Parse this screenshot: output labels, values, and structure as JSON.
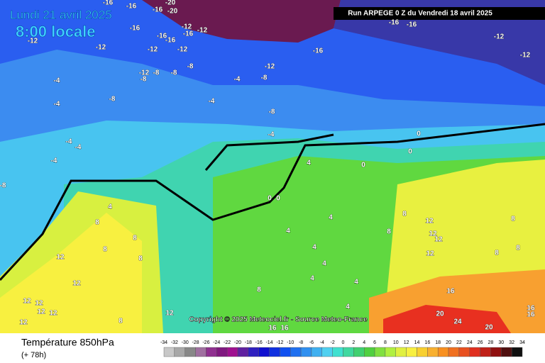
{
  "header": {
    "date": "Lundi 21 avril 2025",
    "time": "8:00 locale",
    "run": "Run ARPEGE 0 Z du Vendredi 18 avril 2025"
  },
  "copyright": "Copyright © 2025 Meteociel.fr - Source Meteo-France",
  "footer": {
    "title": "Température 850hPa",
    "lead": "(+ 78h)"
  },
  "legend": {
    "ticks": [
      -34,
      -32,
      -30,
      -28,
      -26,
      -24,
      -22,
      -20,
      -18,
      -16,
      -14,
      -12,
      -10,
      -8,
      -6,
      -4,
      -2,
      0,
      2,
      4,
      6,
      8,
      10,
      12,
      14,
      16,
      18,
      20,
      22,
      24,
      26,
      28,
      30,
      32,
      34
    ],
    "colors": [
      "#c8c8c8",
      "#a8a8a8",
      "#888888",
      "#a070a0",
      "#903090",
      "#801880",
      "#a01090",
      "#6020a0",
      "#3020c0",
      "#1010d0",
      "#1030e0",
      "#1050f0",
      "#2070f0",
      "#3090f0",
      "#40b0f0",
      "#50d0f0",
      "#40e0d0",
      "#40d8a0",
      "#40d070",
      "#50d040",
      "#80e040",
      "#b0f040",
      "#e0f040",
      "#f8f040",
      "#f8d030",
      "#f8b030",
      "#f89020",
      "#f07020",
      "#e85020",
      "#e03020",
      "#c02018",
      "#901010",
      "#501010",
      "#101010"
    ]
  },
  "contour_labels": [
    -16,
    -20,
    -16,
    -16,
    -20,
    -16,
    -16,
    -12,
    -16,
    -12,
    -16,
    -12,
    -12,
    -12,
    -12,
    -16,
    -16,
    -16,
    -12,
    -12,
    -8,
    -8,
    -8,
    -12,
    -8,
    -12,
    -8,
    -4,
    -4,
    -4,
    -8,
    -4,
    -8,
    -4,
    -4,
    -4,
    -4,
    -8,
    0,
    0,
    0,
    4,
    0,
    0,
    4,
    8,
    8,
    8,
    12,
    8,
    4,
    4,
    4,
    4,
    4,
    8,
    4,
    4,
    12,
    12,
    12,
    12,
    12,
    12,
    12,
    8,
    16,
    16,
    8,
    8,
    12,
    12,
    12,
    12,
    8,
    8,
    8,
    16,
    20,
    24,
    20,
    16,
    16
  ]
}
